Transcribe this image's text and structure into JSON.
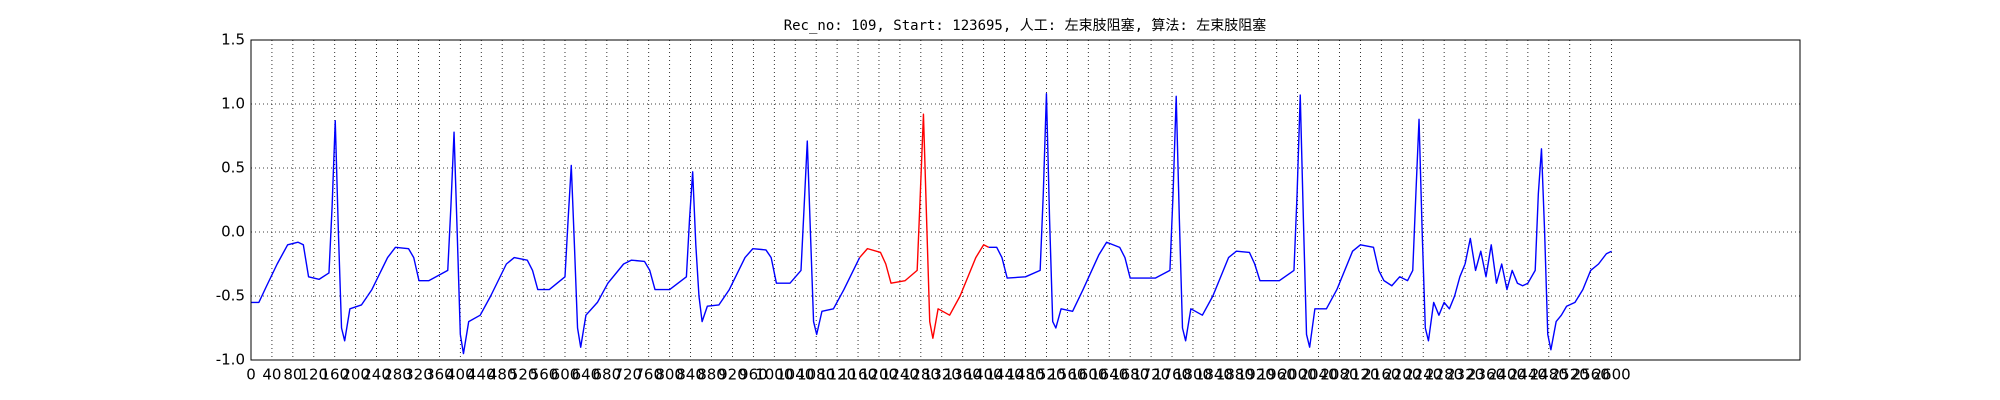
{
  "chart_data": {
    "type": "line",
    "title": "Rec_no: 109, Start: 123695, 人工: 左束肢阻塞, 算法: 左束肢阻塞",
    "xlim": [
      0,
      2960
    ],
    "ylim": [
      -1.0,
      1.5
    ],
    "xticks": [
      0,
      40,
      80,
      120,
      160,
      200,
      240,
      280,
      320,
      360,
      400,
      440,
      480,
      520,
      560,
      600,
      640,
      680,
      720,
      760,
      800,
      840,
      880,
      920,
      960,
      1000,
      1040,
      1080,
      1120,
      1160,
      1200,
      1240,
      1280,
      1320,
      1360,
      1400,
      1440,
      1480,
      1520,
      1560,
      1600,
      1640,
      1680,
      1720,
      1760,
      1800,
      1840,
      1880,
      1920,
      1960,
      2000,
      2040,
      2080,
      2120,
      2160,
      2200,
      2240,
      2280,
      2320,
      2360,
      2400,
      2440,
      2480,
      2520,
      2560,
      2600
    ],
    "yticks": [
      {
        "value": -1.0,
        "label": "-1.0"
      },
      {
        "value": -0.5,
        "label": "-0.5"
      },
      {
        "value": 0.0,
        "label": "0.0"
      },
      {
        "value": 0.5,
        "label": "0.5"
      },
      {
        "value": 1.0,
        "label": "1.0"
      },
      {
        "value": 1.5,
        "label": "1.5"
      }
    ],
    "grid": true,
    "series": [
      {
        "color": "#0000ff",
        "x": [
          0,
          15,
          30,
          50,
          70,
          90,
          100,
          110,
          130,
          149,
          155,
          161,
          167,
          173,
          179,
          189,
          211,
          231,
          261,
          276,
          301,
          311,
          321,
          340,
          376,
          382,
          388,
          394,
          400,
          406,
          416,
          438,
          458,
          488,
          503,
          528,
          538,
          548,
          570,
          600,
          606,
          612,
          618,
          624,
          630,
          640,
          662,
          682,
          712,
          727,
          752,
          762,
          772,
          800,
          832,
          838,
          844,
          850,
          856,
          862,
          872,
          894,
          914,
          944,
          959,
          984,
          994,
          1004,
          1030,
          1051,
          1057,
          1063,
          1069,
          1075,
          1081,
          1091,
          1113,
          1133,
          1163
        ],
        "values": [
          -0.55,
          -0.55,
          -0.42,
          -0.25,
          -0.1,
          -0.08,
          -0.1,
          -0.35,
          -0.37,
          -0.32,
          0.2,
          0.87,
          0.0,
          -0.75,
          -0.85,
          -0.6,
          -0.57,
          -0.45,
          -0.2,
          -0.12,
          -0.13,
          -0.2,
          -0.38,
          -0.38,
          -0.3,
          0.2,
          0.78,
          0.0,
          -0.8,
          -0.95,
          -0.7,
          -0.65,
          -0.5,
          -0.25,
          -0.2,
          -0.22,
          -0.3,
          -0.45,
          -0.45,
          -0.35,
          0.1,
          0.52,
          -0.1,
          -0.75,
          -0.9,
          -0.65,
          -0.55,
          -0.4,
          -0.25,
          -0.22,
          -0.23,
          -0.3,
          -0.45,
          -0.45,
          -0.35,
          0.1,
          0.47,
          -0.1,
          -0.5,
          -0.7,
          -0.58,
          -0.57,
          -0.45,
          -0.2,
          -0.13,
          -0.14,
          -0.2,
          -0.4,
          -0.4,
          -0.3,
          0.2,
          0.71,
          0.0,
          -0.7,
          -0.8,
          -0.62,
          -0.6,
          -0.45,
          -0.2
        ]
      },
      {
        "color": "#ff0000",
        "x": [
          1163,
          1178,
          1203,
          1213,
          1223,
          1250,
          1273,
          1279,
          1285,
          1291,
          1297,
          1303,
          1313,
          1335,
          1355,
          1385,
          1400,
          1410
        ],
        "values": [
          -0.2,
          -0.13,
          -0.16,
          -0.25,
          -0.4,
          -0.38,
          -0.3,
          0.3,
          0.92,
          0.1,
          -0.7,
          -0.83,
          -0.6,
          -0.65,
          -0.5,
          -0.2,
          -0.1,
          -0.12
        ]
      },
      {
        "color": "#0000ff",
        "x": [
          1410,
          1425,
          1435,
          1445,
          1480,
          1508,
          1514,
          1520,
          1526,
          1532,
          1538,
          1548,
          1570,
          1590,
          1620,
          1635,
          1660,
          1670,
          1680,
          1728,
          1756,
          1762,
          1768,
          1774,
          1780,
          1786,
          1796,
          1818,
          1838,
          1868,
          1883,
          1908,
          1918,
          1928,
          1965,
          1993,
          1999,
          2005,
          2011,
          2017,
          2023,
          2033,
          2055,
          2075,
          2105,
          2120,
          2145,
          2155,
          2165,
          2180,
          2195,
          2210,
          2220,
          2226,
          2232,
          2238,
          2244,
          2250,
          2260,
          2270,
          2280,
          2290,
          2300,
          2310,
          2320,
          2330,
          2340,
          2350,
          2360,
          2370,
          2380,
          2390,
          2400,
          2410,
          2420,
          2430,
          2440,
          2454,
          2460,
          2466,
          2472,
          2478,
          2484,
          2494,
          2504,
          2514,
          2530,
          2545,
          2560,
          2575,
          2590,
          2600
        ],
        "values": [
          -0.12,
          -0.12,
          -0.2,
          -0.36,
          -0.35,
          -0.3,
          0.3,
          1.08,
          0.1,
          -0.7,
          -0.75,
          -0.6,
          -0.62,
          -0.45,
          -0.18,
          -0.08,
          -0.12,
          -0.2,
          -0.36,
          -0.36,
          -0.3,
          0.3,
          1.06,
          0.1,
          -0.75,
          -0.85,
          -0.6,
          -0.65,
          -0.5,
          -0.2,
          -0.15,
          -0.16,
          -0.25,
          -0.38,
          -0.38,
          -0.3,
          0.3,
          1.07,
          0.1,
          -0.8,
          -0.9,
          -0.6,
          -0.6,
          -0.45,
          -0.15,
          -0.1,
          -0.12,
          -0.3,
          -0.38,
          -0.42,
          -0.35,
          -0.38,
          -0.3,
          0.3,
          0.88,
          0.0,
          -0.75,
          -0.85,
          -0.55,
          -0.65,
          -0.55,
          -0.6,
          -0.5,
          -0.35,
          -0.25,
          -0.05,
          -0.3,
          -0.15,
          -0.35,
          -0.1,
          -0.4,
          -0.25,
          -0.45,
          -0.3,
          -0.4,
          -0.42,
          -0.4,
          -0.3,
          0.3,
          0.65,
          0.0,
          -0.8,
          -0.92,
          -0.7,
          -0.65,
          -0.58,
          -0.55,
          -0.45,
          -0.3,
          -0.25,
          -0.17,
          -0.15
        ]
      }
    ]
  }
}
